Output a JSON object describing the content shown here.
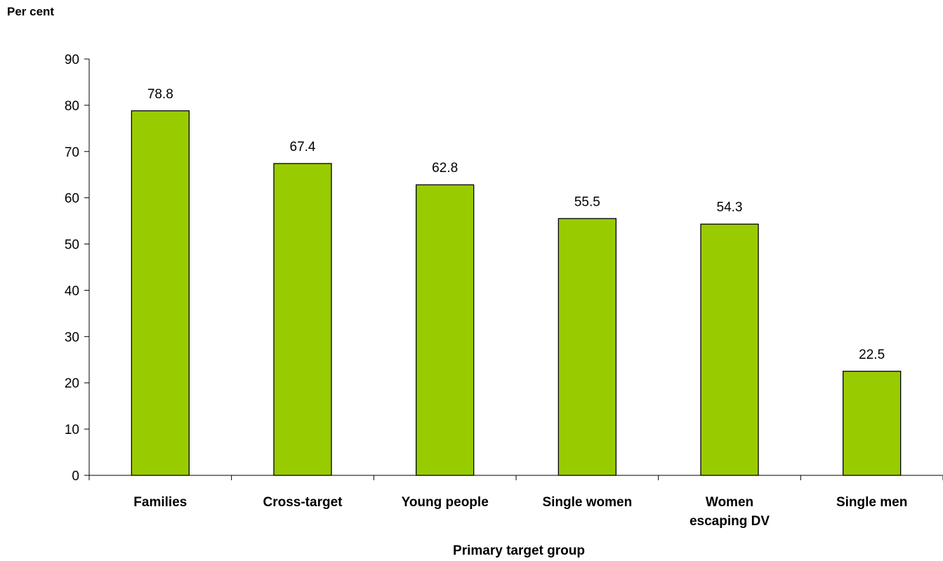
{
  "chart_data": {
    "type": "bar",
    "ylabel": "Per cent",
    "xlabel": "Primary target group",
    "categories": [
      [
        "Families"
      ],
      [
        "Cross-target"
      ],
      [
        "Young people"
      ],
      [
        "Single women"
      ],
      [
        "Women",
        "escaping DV"
      ],
      [
        "Single men"
      ]
    ],
    "values": [
      78.8,
      67.4,
      62.8,
      55.5,
      54.3,
      22.5
    ],
    "data_labels": [
      "78.8",
      "67.4",
      "62.8",
      "55.5",
      "54.3",
      "22.5"
    ],
    "ylim": [
      0,
      90
    ],
    "yticks": [
      0,
      10,
      20,
      30,
      40,
      50,
      60,
      70,
      80,
      90
    ],
    "grid": false,
    "legend": "none",
    "bar_color": "#99cc00",
    "bar_edge_color": "#000000"
  }
}
